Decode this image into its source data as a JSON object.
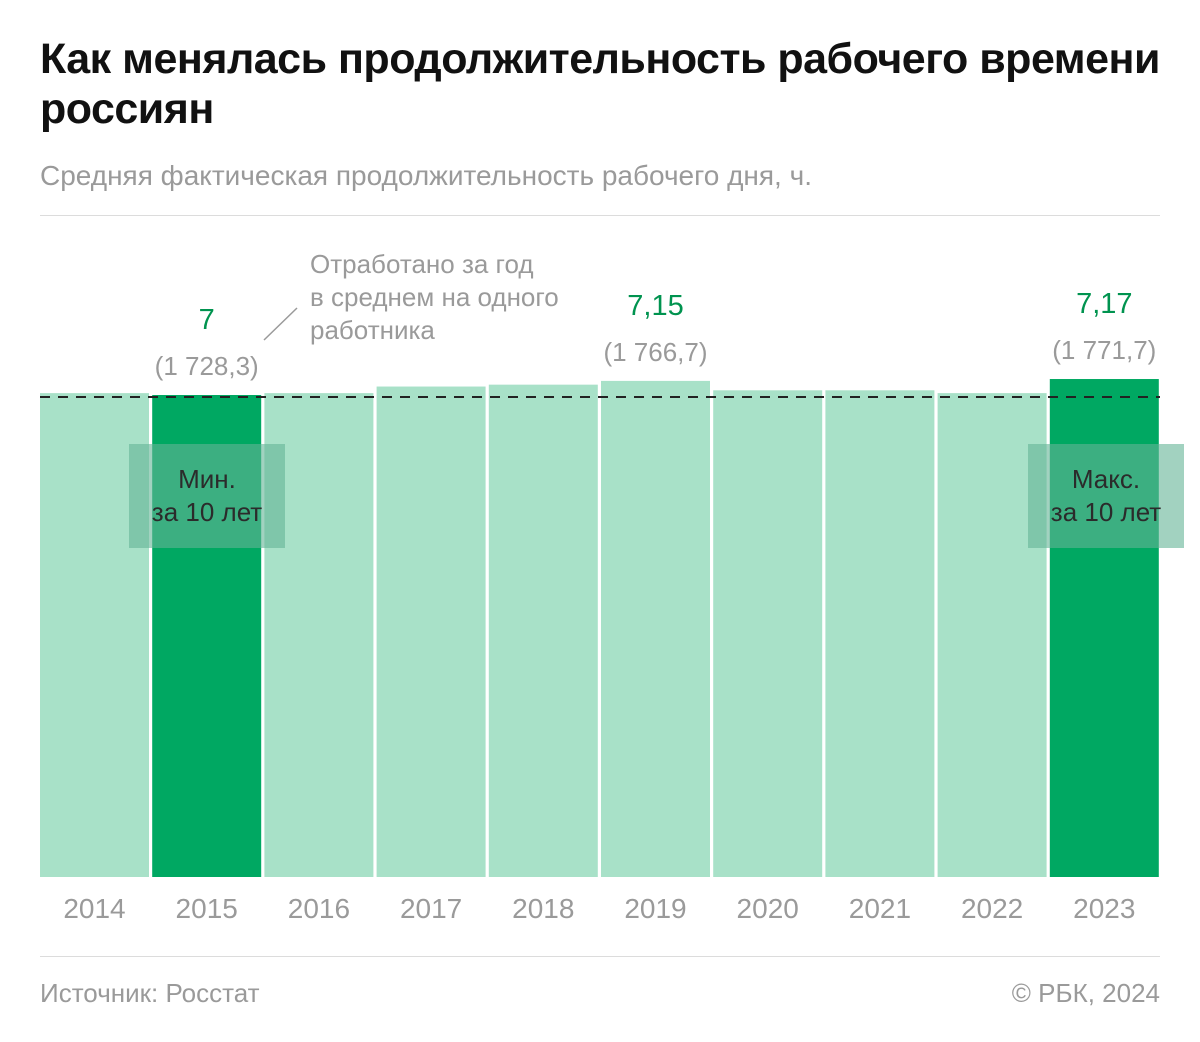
{
  "header": {
    "title": "Как менялась продолжительность рабочего времени россиян",
    "subtitle": "Средняя фактическая продолжительность рабочего дня, ч."
  },
  "chart_data": {
    "type": "bar",
    "title": "Как менялась продолжительность рабочего времени россиян",
    "subtitle": "Средняя фактическая продолжительность рабочего дня, ч.",
    "categories": [
      "2014",
      "2015",
      "2016",
      "2017",
      "2018",
      "2019",
      "2020",
      "2021",
      "2022",
      "2023"
    ],
    "values": [
      7.02,
      7.0,
      7.02,
      7.09,
      7.11,
      7.15,
      7.05,
      7.05,
      7.02,
      7.17
    ],
    "highlighted": [
      "2015",
      "2023"
    ],
    "data_labels": [
      {
        "category": "2015",
        "value": "7",
        "hours_year": "(1 728,3)"
      },
      {
        "category": "2019",
        "value": "7,15",
        "hours_year": "(1 766,7)"
      },
      {
        "category": "2023",
        "value": "7,17",
        "hours_year": "(1 771,7)"
      }
    ],
    "annotation": "Отработано за год в среднем на одного работника",
    "annotation_lines": [
      "Отработано за год",
      "в среднем на одного",
      "работника"
    ],
    "tags": [
      {
        "category": "2015",
        "lines": [
          "Мин.",
          "за 10 лет"
        ]
      },
      {
        "category": "2023",
        "lines": [
          "Макс.",
          "за 10 лет"
        ]
      }
    ],
    "reference_line": "dashed",
    "grid": false,
    "colors": {
      "bar": "#a8e1c8",
      "highlight": "#00a862",
      "label": "#00934f",
      "muted": "#9a9a9a"
    }
  },
  "footer": {
    "source": "Источник: Росстат",
    "copyright": "© РБК, 2024"
  }
}
